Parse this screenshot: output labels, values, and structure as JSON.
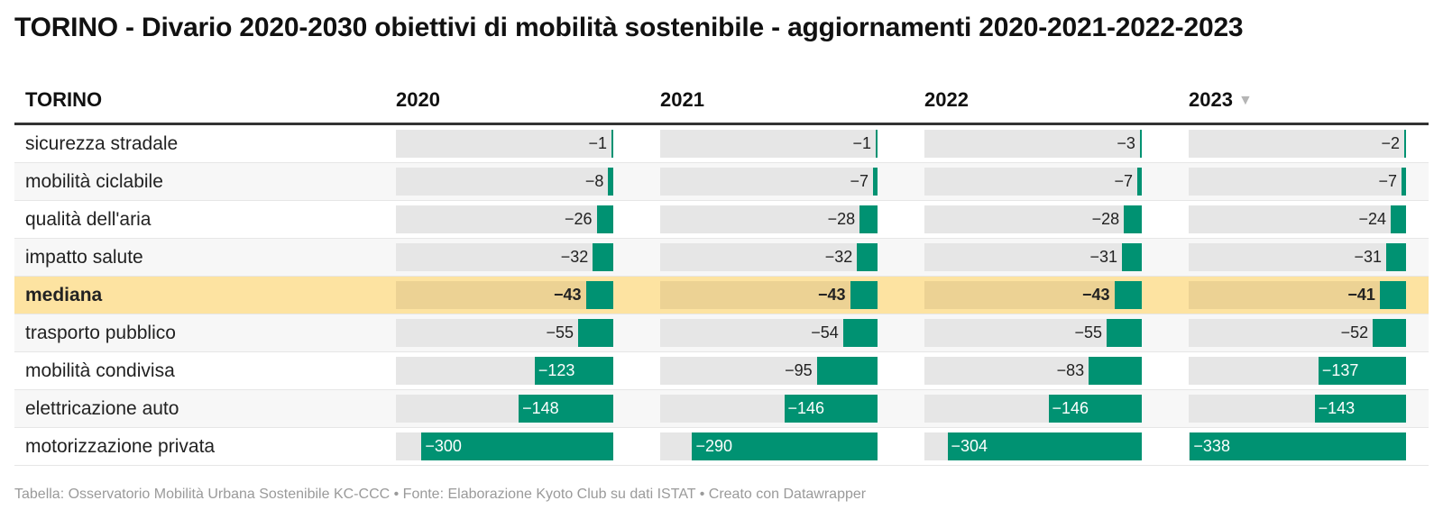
{
  "title": "TORINO - Divario 2020-2030 obiettivi di mobilità sostenibile - aggiornamenti 2020-2021-2022-2023",
  "table": {
    "first_header": "TORINO",
    "columns": [
      "2020",
      "2021",
      "2022",
      "2023"
    ],
    "sorted_column": "2023",
    "sort_icon": "sort-descending-icon",
    "highlight_row": "mediana",
    "rows": [
      {
        "label": "sicurezza stradale",
        "values": [
          -1,
          -1,
          -3,
          -2
        ],
        "texts": [
          "−1",
          "−1",
          "−3",
          "−2"
        ]
      },
      {
        "label": "mobilità ciclabile",
        "values": [
          -8,
          -7,
          -7,
          -7
        ],
        "texts": [
          "−8",
          "−7",
          "−7",
          "−7"
        ]
      },
      {
        "label": "qualità dell'aria",
        "values": [
          -26,
          -28,
          -28,
          -24
        ],
        "texts": [
          "−26",
          "−28",
          "−28",
          "−24"
        ]
      },
      {
        "label": "impatto salute",
        "values": [
          -32,
          -32,
          -31,
          -31
        ],
        "texts": [
          "−32",
          "−32",
          "−31",
          "−31"
        ]
      },
      {
        "label": "mediana",
        "values": [
          -43,
          -43,
          -43,
          -41
        ],
        "texts": [
          "−43",
          "−43",
          "−43",
          "−41"
        ]
      },
      {
        "label": "trasporto pubblico",
        "values": [
          -55,
          -54,
          -55,
          -52
        ],
        "texts": [
          "−55",
          "−54",
          "−55",
          "−52"
        ]
      },
      {
        "label": "mobilità condivisa",
        "values": [
          -123,
          -95,
          -83,
          -137
        ],
        "texts": [
          "−123",
          "−95",
          "−83",
          "−137"
        ]
      },
      {
        "label": "elettricazione auto",
        "values": [
          -148,
          -146,
          -146,
          -143
        ],
        "texts": [
          "−148",
          "−146",
          "−146",
          "−143"
        ]
      },
      {
        "label": "motorizzazione privata",
        "values": [
          -300,
          -290,
          -304,
          -338
        ],
        "texts": [
          "−300",
          "−290",
          "−304",
          "−338"
        ]
      }
    ]
  },
  "colors": {
    "bar": "#009272",
    "track": "#e6e6e6",
    "highlight_row": "#fde3a1",
    "highlight_track": "#ecd294"
  },
  "footer": "Tabella: Osservatorio Mobilità Urbana Sostenibile KC-CCC • Fonte: Elaborazione Kyoto Club su dati ISTAT • Creato con Datawrapper",
  "chart_data": {
    "type": "table",
    "title": "TORINO - Divario 2020-2030 obiettivi di mobilità sostenibile - aggiornamenti 2020-2021-2022-2023",
    "categories": [
      "sicurezza stradale",
      "mobilità ciclabile",
      "qualità dell'aria",
      "impatto salute",
      "mediana",
      "trasporto pubblico",
      "mobilità condivisa",
      "elettricazione auto",
      "motorizzazione privata"
    ],
    "series": [
      {
        "name": "2020",
        "values": [
          -1,
          -8,
          -26,
          -32,
          -43,
          -55,
          -123,
          -148,
          -300
        ]
      },
      {
        "name": "2021",
        "values": [
          -1,
          -7,
          -28,
          -32,
          -43,
          -54,
          -95,
          -146,
          -290
        ]
      },
      {
        "name": "2022",
        "values": [
          -3,
          -7,
          -28,
          -31,
          -43,
          -55,
          -83,
          -146,
          -304
        ]
      },
      {
        "name": "2023",
        "values": [
          -2,
          -7,
          -24,
          -31,
          -41,
          -52,
          -137,
          -143,
          -338
        ]
      }
    ],
    "xlabel": "",
    "ylabel": ""
  }
}
